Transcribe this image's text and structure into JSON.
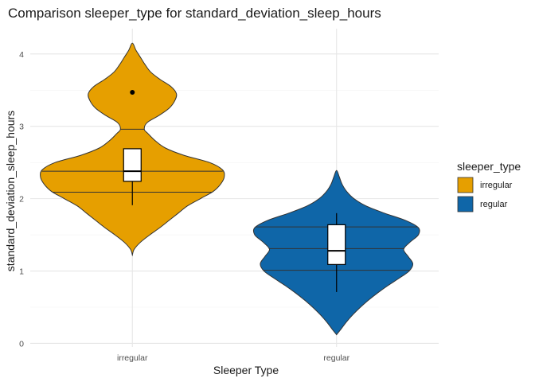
{
  "chart_data": {
    "type": "violin",
    "title": "Comparison sleeper_type for standard_deviation_sleep_hours",
    "xlabel": "Sleeper Type",
    "ylabel": "standard_deviation_sleep_hours",
    "categories": [
      "irregular",
      "regular"
    ],
    "ylim": [
      -0.05,
      4.35
    ],
    "yticks": [
      0,
      1,
      2,
      3,
      4
    ],
    "grid": true,
    "legend": {
      "title": "sleeper_type",
      "placement": "right",
      "entries": [
        {
          "label": "irregular",
          "color": "#E69F00"
        },
        {
          "label": "regular",
          "color": "#0F66A8"
        }
      ]
    },
    "series": [
      {
        "category": "irregular",
        "color": "#E69F00",
        "violin_range": [
          1.22,
          4.15
        ],
        "quantile_lines": [
          2.09,
          2.38,
          2.96
        ],
        "box": {
          "q1": 2.24,
          "median": 2.38,
          "q3": 2.69,
          "whisker_low": 1.91,
          "whisker_high": 2.69
        },
        "outliers": [
          3.47
        ],
        "density": [
          [
            1.22,
            0.0
          ],
          [
            1.3,
            0.02
          ],
          [
            1.4,
            0.09
          ],
          [
            1.5,
            0.19
          ],
          [
            1.6,
            0.3
          ],
          [
            1.7,
            0.4
          ],
          [
            1.8,
            0.5
          ],
          [
            1.9,
            0.6
          ],
          [
            2.0,
            0.74
          ],
          [
            2.1,
            0.88
          ],
          [
            2.2,
            0.96
          ],
          [
            2.3,
            1.0
          ],
          [
            2.4,
            0.98
          ],
          [
            2.5,
            0.84
          ],
          [
            2.6,
            0.56
          ],
          [
            2.7,
            0.36
          ],
          [
            2.8,
            0.25
          ],
          [
            2.9,
            0.17
          ],
          [
            2.96,
            0.13
          ],
          [
            3.05,
            0.16
          ],
          [
            3.15,
            0.29
          ],
          [
            3.25,
            0.4
          ],
          [
            3.35,
            0.46
          ],
          [
            3.45,
            0.48
          ],
          [
            3.55,
            0.42
          ],
          [
            3.65,
            0.3
          ],
          [
            3.75,
            0.2
          ],
          [
            3.85,
            0.14
          ],
          [
            3.95,
            0.09
          ],
          [
            4.05,
            0.04
          ],
          [
            4.15,
            0.0
          ]
        ]
      },
      {
        "category": "regular",
        "color": "#0F66A8",
        "violin_range": [
          0.12,
          2.39
        ],
        "quantile_lines": [
          1.01,
          1.31,
          1.61
        ],
        "box": {
          "q1": 1.09,
          "median": 1.28,
          "q3": 1.64,
          "whisker_low": 0.71,
          "whisker_high": 1.8
        },
        "outliers": [],
        "density": [
          [
            0.12,
            0.0
          ],
          [
            0.2,
            0.05
          ],
          [
            0.3,
            0.11
          ],
          [
            0.4,
            0.18
          ],
          [
            0.5,
            0.26
          ],
          [
            0.6,
            0.35
          ],
          [
            0.7,
            0.45
          ],
          [
            0.8,
            0.56
          ],
          [
            0.9,
            0.68
          ],
          [
            1.0,
            0.79
          ],
          [
            1.1,
            0.83
          ],
          [
            1.2,
            0.78
          ],
          [
            1.3,
            0.73
          ],
          [
            1.4,
            0.8
          ],
          [
            1.5,
            0.89
          ],
          [
            1.6,
            0.89
          ],
          [
            1.7,
            0.75
          ],
          [
            1.8,
            0.52
          ],
          [
            1.9,
            0.32
          ],
          [
            2.0,
            0.19
          ],
          [
            2.1,
            0.11
          ],
          [
            2.2,
            0.06
          ],
          [
            2.3,
            0.03
          ],
          [
            2.39,
            0.0
          ]
        ]
      }
    ]
  }
}
